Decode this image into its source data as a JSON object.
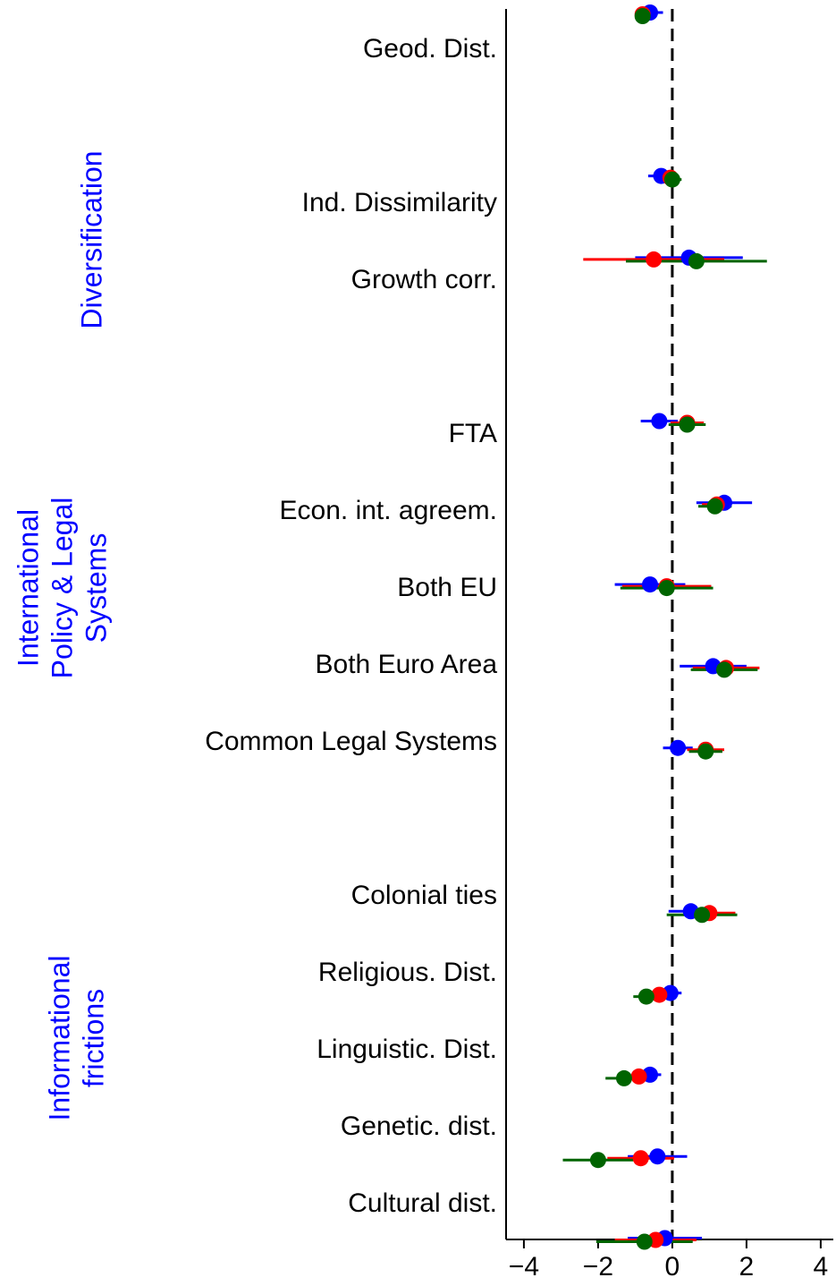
{
  "chart_data": {
    "type": "coefplot",
    "categories": [
      "Geod. Dist.",
      null,
      "Ind. Dissimilarity",
      "Growth corr.",
      null,
      "FTA",
      "Econ. int. agreem.",
      "Both EU",
      "Both Euro Area",
      "Common Legal Systems",
      null,
      "Colonial ties",
      "Religious. Dist.",
      "Linguistic. Dist.",
      "Genetic. dist.",
      "Cultural dist."
    ],
    "groups": [
      {
        "lines": [
          "Diversification"
        ],
        "color": "#0000ff"
      },
      {
        "lines": [
          "International",
          "Policy & Legal",
          "Systems"
        ],
        "color": "#0000ff"
      },
      {
        "lines": [
          "Informational",
          "frictions"
        ],
        "color": "#0000ff"
      }
    ],
    "series": [
      {
        "color": "#0000ff",
        "values": [
          -0.6,
          null,
          -0.3,
          0.45,
          null,
          -0.35,
          1.4,
          -0.6,
          1.1,
          0.15,
          null,
          0.5,
          -0.05,
          -0.6,
          -0.4,
          -0.2
        ],
        "errors": [
          0.35,
          null,
          0.35,
          1.45,
          null,
          0.5,
          0.75,
          0.95,
          0.9,
          0.4,
          null,
          0.6,
          0.3,
          0.3,
          0.8,
          1.0
        ]
      },
      {
        "color": "#ff0000",
        "values": [
          -0.8,
          null,
          -0.05,
          -0.5,
          null,
          0.4,
          1.2,
          -0.15,
          1.45,
          0.9,
          null,
          1.0,
          -0.35,
          -0.9,
          -0.85,
          -0.45
        ],
        "errors": [
          0.2,
          null,
          0.2,
          1.9,
          null,
          0.45,
          0.4,
          1.2,
          0.9,
          0.5,
          null,
          0.7,
          0.3,
          0.4,
          0.9,
          1.1
        ]
      },
      {
        "color": "#006400",
        "values": [
          -0.8,
          null,
          0.0,
          0.65,
          null,
          0.4,
          1.15,
          -0.15,
          1.4,
          0.9,
          null,
          0.8,
          -0.7,
          -1.3,
          -2.0,
          -0.75
        ],
        "errors": [
          0.2,
          null,
          0.25,
          1.9,
          null,
          0.5,
          0.45,
          1.25,
          0.9,
          0.45,
          null,
          0.95,
          0.35,
          0.5,
          0.95,
          1.3
        ]
      }
    ],
    "xlim": [
      -4.48,
      4.34
    ],
    "xticks": [
      {
        "value": -4,
        "label": "−4"
      },
      {
        "value": -2,
        "label": "−2"
      },
      0,
      2,
      4
    ],
    "refline": 0
  }
}
